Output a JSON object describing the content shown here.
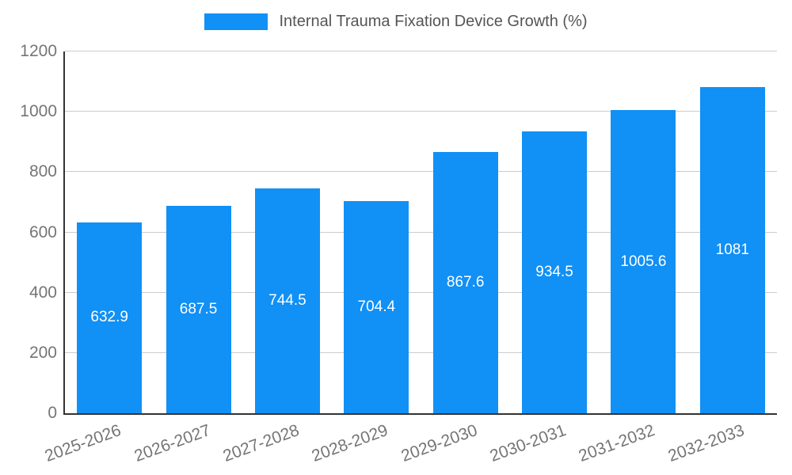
{
  "chart_data": {
    "type": "bar",
    "title": "Internal Trauma Fixation Device Growth (%)",
    "categories": [
      "2025-2026",
      "2026-2027",
      "2027-2028",
      "2028-2029",
      "2029-2030",
      "2030-2031",
      "2031-2032",
      "2032-2033"
    ],
    "values": [
      632.9,
      687.5,
      744.5,
      704.4,
      867.6,
      934.5,
      1005.6,
      1081
    ],
    "value_labels": [
      "632.9",
      "687.5",
      "744.5",
      "704.4",
      "867.6",
      "934.5",
      "1005.6",
      "1081"
    ],
    "xlabel": "",
    "ylabel": "",
    "ylim": [
      0,
      1200
    ],
    "yticks": [
      0,
      200,
      400,
      600,
      800,
      1000,
      1200
    ],
    "grid": true,
    "legend_position": "top",
    "colors": {
      "bar": "#1190f5",
      "grid": "#cccccc",
      "axis": "#333333",
      "tick_label": "#757575",
      "value_label": "#ffffff",
      "legend_text": "#555555",
      "background": "#ffffff"
    }
  }
}
